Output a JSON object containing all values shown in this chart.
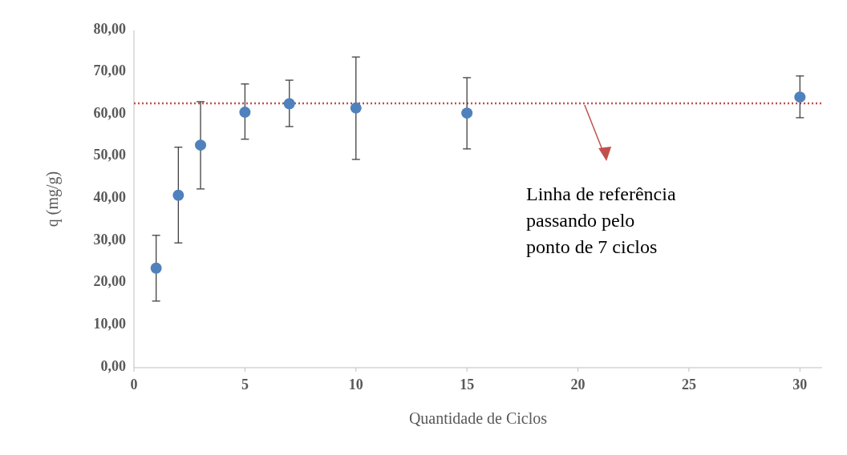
{
  "chart_data": {
    "type": "scatter",
    "xlabel": "Quantidade de Ciclos",
    "ylabel": "q (mg/g)",
    "xlim": [
      0,
      31
    ],
    "xticks": [
      0,
      5,
      10,
      15,
      20,
      25,
      30
    ],
    "ylim": [
      0,
      80
    ],
    "yticks": [
      {
        "value": 0,
        "label": "0,00"
      },
      {
        "value": 10,
        "label": "10,00"
      },
      {
        "value": 20,
        "label": "20,00"
      },
      {
        "value": 30,
        "label": "30,00"
      },
      {
        "value": 40,
        "label": "40,00"
      },
      {
        "value": 50,
        "label": "50,00"
      },
      {
        "value": 60,
        "label": "60,00"
      },
      {
        "value": 70,
        "label": "70,00"
      },
      {
        "value": 80,
        "label": "80,00"
      }
    ],
    "x": [
      1,
      2,
      3,
      5,
      7,
      10,
      15,
      30
    ],
    "series": [
      {
        "color": "#4f81bd",
        "values": [
          23.6,
          40.9,
          52.8,
          60.6,
          62.6,
          61.6,
          60.4,
          64.2
        ],
        "errors": [
          [
            15.8,
            31.4
          ],
          [
            29.6,
            52.3
          ],
          [
            42.4,
            63.1
          ],
          [
            54.2,
            67.3
          ],
          [
            57.2,
            68.2
          ],
          [
            49.4,
            73.7
          ],
          [
            51.9,
            68.8
          ],
          [
            59.3,
            69.2
          ]
        ]
      }
    ],
    "marker": "circle",
    "grid": false,
    "ref_lines": [
      {
        "axis": "y",
        "value": 62.7,
        "color": "#c0504d",
        "line_style": "dotted"
      }
    ],
    "annotations": [
      "Linha de referência\npassando pelo\nponto de 7 ciclos"
    ]
  }
}
